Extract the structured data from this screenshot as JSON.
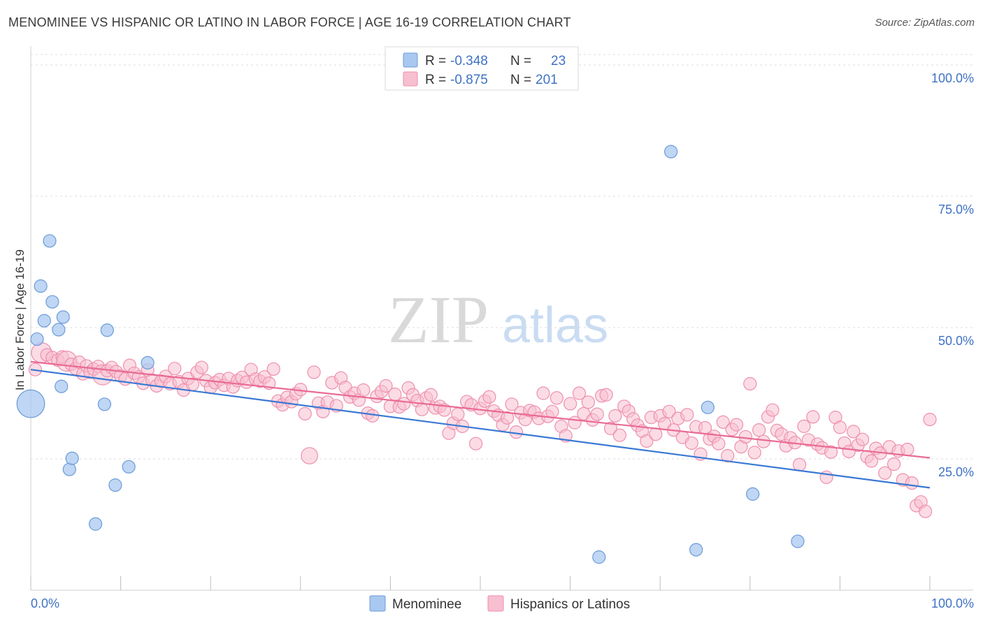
{
  "title": "MENOMINEE VS HISPANIC OR LATINO IN LABOR FORCE | AGE 16-19 CORRELATION CHART",
  "source": "Source: ZipAtlas.com",
  "watermark": {
    "zip": "ZIP",
    "atlas": "atlas"
  },
  "legend": {
    "rows": [
      {
        "r_label": "R = ",
        "r_value": "-0.348",
        "n_label": "N = ",
        "n_value": "23"
      },
      {
        "r_label": "R = ",
        "r_value": "-0.875",
        "n_label": "N = ",
        "n_value": "201"
      }
    ]
  },
  "colors": {
    "menominee_fill": "#a9c8f0",
    "menominee_stroke": "#6b9bd8",
    "menominee_line": "#3a78d4",
    "hispanic_fill": "#f7bfd0",
    "hispanic_stroke": "#ee8fae",
    "hispanic_line": "#e96a95"
  },
  "chart_data": {
    "type": "scatter",
    "title": "MENOMINEE VS HISPANIC OR LATINO IN LABOR FORCE | AGE 16-19 CORRELATION CHART",
    "xlabel": "",
    "ylabel": "In Labor Force | Age 16-19",
    "xlim": [
      0,
      100
    ],
    "ylim": [
      0,
      102
    ],
    "x_tick_labels": [
      "0.0%",
      "100.0%"
    ],
    "y_ticks": [
      25,
      50,
      75,
      100
    ],
    "y_tick_labels": [
      "25.0%",
      "50.0%",
      "75.0%",
      "100.0%"
    ],
    "grid": true,
    "legend_position": "top-center",
    "series": [
      {
        "name": "Menominee",
        "trend": [
          [
            0,
            42.0
          ],
          [
            100,
            19.5
          ]
        ],
        "points": [
          [
            0.0,
            35.5,
            2.2
          ],
          [
            0.7,
            47.8,
            1
          ],
          [
            1.1,
            57.9,
            1
          ],
          [
            1.5,
            51.3,
            1
          ],
          [
            2.1,
            66.5,
            1
          ],
          [
            2.4,
            54.9,
            1
          ],
          [
            3.1,
            49.6,
            1
          ],
          [
            3.4,
            38.8,
            1
          ],
          [
            3.6,
            52.0,
            1
          ],
          [
            4.3,
            23.0,
            1
          ],
          [
            4.6,
            25.1,
            1
          ],
          [
            7.2,
            12.6,
            1
          ],
          [
            8.2,
            35.4,
            1
          ],
          [
            8.5,
            49.5,
            1
          ],
          [
            9.4,
            20.0,
            1
          ],
          [
            10.9,
            23.5,
            1
          ],
          [
            13.0,
            43.3,
            1
          ],
          [
            63.2,
            6.3,
            1
          ],
          [
            71.2,
            83.5,
            1
          ],
          [
            74.0,
            7.7,
            1
          ],
          [
            75.3,
            34.8,
            1
          ],
          [
            80.3,
            18.3,
            1
          ],
          [
            76.9,
            18.1,
            0
          ],
          [
            85.3,
            9.3,
            1
          ]
        ]
      },
      {
        "name": "Hispanics or Latinos",
        "trend": [
          [
            0,
            43.5
          ],
          [
            100,
            25.2
          ]
        ],
        "points": [
          [
            0.5,
            42.0,
            1
          ],
          [
            1.2,
            45.2,
            1.6
          ],
          [
            1.8,
            44.8,
            1
          ],
          [
            2.4,
            44.3,
            1
          ],
          [
            3.0,
            43.8,
            1
          ],
          [
            3.5,
            44.4,
            1
          ],
          [
            4.0,
            43.6,
            1.6
          ],
          [
            4.5,
            43.0,
            1
          ],
          [
            5.0,
            42.2,
            1
          ],
          [
            5.4,
            43.4,
            1
          ],
          [
            5.8,
            41.2,
            1
          ],
          [
            6.2,
            42.7,
            1
          ],
          [
            6.6,
            41.5,
            1
          ],
          [
            7.0,
            42.1,
            1
          ],
          [
            7.5,
            42.6,
            1
          ],
          [
            8.0,
            41.0,
            1.6
          ],
          [
            8.5,
            41.8,
            1
          ],
          [
            9.0,
            42.4,
            1
          ],
          [
            9.5,
            41.6,
            1
          ],
          [
            10.0,
            40.8,
            1
          ],
          [
            10.5,
            40.2,
            1
          ],
          [
            11.0,
            42.8,
            1
          ],
          [
            11.5,
            41.3,
            1
          ],
          [
            12.0,
            40.6,
            1
          ],
          [
            12.5,
            39.4,
            1
          ],
          [
            13.0,
            41.9,
            1
          ],
          [
            13.5,
            40.0,
            1
          ],
          [
            14.0,
            38.9,
            1
          ],
          [
            14.5,
            39.8,
            1
          ],
          [
            15.0,
            40.7,
            1
          ],
          [
            15.5,
            39.3,
            1
          ],
          [
            16.0,
            42.2,
            1
          ],
          [
            16.5,
            39.7,
            1
          ],
          [
            17.0,
            38.1,
            1
          ],
          [
            17.5,
            40.3,
            1
          ],
          [
            18.0,
            39.2,
            1
          ],
          [
            18.5,
            41.5,
            1
          ],
          [
            19.0,
            42.4,
            1
          ],
          [
            19.5,
            39.9,
            1
          ],
          [
            20.0,
            38.6,
            1
          ],
          [
            20.5,
            39.5,
            1
          ],
          [
            21.0,
            40.1,
            1
          ],
          [
            21.5,
            39.0,
            1
          ],
          [
            22.0,
            40.3,
            1
          ],
          [
            22.5,
            38.7,
            1
          ],
          [
            23.0,
            39.9,
            1
          ],
          [
            23.5,
            40.5,
            1
          ],
          [
            24.0,
            39.6,
            1
          ],
          [
            24.5,
            42.0,
            1
          ],
          [
            25.0,
            40.2,
            1
          ],
          [
            25.5,
            39.8,
            1
          ],
          [
            26.0,
            40.6,
            1
          ],
          [
            26.5,
            39.4,
            1
          ],
          [
            27.0,
            42.1,
            1
          ],
          [
            27.5,
            36.0,
            1
          ],
          [
            28.0,
            35.3,
            1
          ],
          [
            28.5,
            36.7,
            1
          ],
          [
            29.0,
            35.9,
            1
          ],
          [
            29.5,
            37.4,
            1
          ],
          [
            30.0,
            38.2,
            1
          ],
          [
            30.5,
            33.6,
            1
          ],
          [
            31.0,
            25.6,
            1.3
          ],
          [
            31.5,
            41.5,
            1
          ],
          [
            32.0,
            35.6,
            1
          ],
          [
            32.5,
            34.0,
            1
          ],
          [
            33.0,
            35.8,
            1
          ],
          [
            33.5,
            39.5,
            1
          ],
          [
            34.0,
            35.1,
            1
          ],
          [
            34.5,
            40.4,
            1
          ],
          [
            35.0,
            38.6,
            1
          ],
          [
            35.5,
            36.8,
            1
          ],
          [
            36.0,
            37.5,
            1
          ],
          [
            36.5,
            36.2,
            1
          ],
          [
            37.0,
            38.1,
            1
          ],
          [
            37.5,
            33.7,
            1
          ],
          [
            38.0,
            33.2,
            1
          ],
          [
            38.5,
            36.9,
            1
          ],
          [
            39.0,
            37.8,
            1
          ],
          [
            39.5,
            38.9,
            1
          ],
          [
            40.0,
            35.0,
            1
          ],
          [
            40.5,
            37.3,
            1
          ],
          [
            41.0,
            34.9,
            1
          ],
          [
            41.5,
            35.5,
            1
          ],
          [
            42.0,
            38.5,
            1
          ],
          [
            42.5,
            37.2,
            1
          ],
          [
            43.0,
            36.1,
            1
          ],
          [
            43.5,
            34.4,
            1
          ],
          [
            44.0,
            36.6,
            1
          ],
          [
            44.5,
            37.2,
            1
          ],
          [
            45.0,
            34.7,
            1
          ],
          [
            45.5,
            35.0,
            1
          ],
          [
            46.0,
            34.3,
            1
          ],
          [
            46.5,
            29.9,
            1
          ],
          [
            47.0,
            31.8,
            1
          ],
          [
            47.5,
            33.5,
            1
          ],
          [
            48.0,
            31.2,
            1
          ],
          [
            48.5,
            35.9,
            1
          ],
          [
            49.0,
            35.3,
            1
          ],
          [
            49.5,
            27.9,
            1
          ],
          [
            50.0,
            34.6,
            1
          ],
          [
            50.5,
            36.0,
            1
          ],
          [
            51.0,
            36.8,
            1
          ],
          [
            51.5,
            34.1,
            1
          ],
          [
            52.0,
            33.3,
            1
          ],
          [
            52.5,
            31.5,
            1
          ],
          [
            53.0,
            32.8,
            1
          ],
          [
            53.5,
            35.4,
            1
          ],
          [
            54.0,
            30.1,
            1
          ],
          [
            54.5,
            33.8,
            1
          ],
          [
            55.0,
            32.5,
            1
          ],
          [
            55.5,
            34.2,
            1
          ],
          [
            56.0,
            33.9,
            1
          ],
          [
            56.5,
            32.7,
            1
          ],
          [
            57.0,
            37.5,
            1
          ],
          [
            57.5,
            33.1,
            1
          ],
          [
            58.0,
            34.0,
            1
          ],
          [
            58.5,
            36.6,
            1
          ],
          [
            59.0,
            31.2,
            1
          ],
          [
            59.5,
            29.4,
            1
          ],
          [
            60.0,
            35.5,
            1
          ],
          [
            60.5,
            31.9,
            1
          ],
          [
            61.0,
            37.5,
            1
          ],
          [
            61.5,
            33.6,
            1
          ],
          [
            62.0,
            35.8,
            1
          ],
          [
            62.5,
            32.4,
            1
          ],
          [
            63.0,
            33.5,
            1
          ],
          [
            63.5,
            37.0,
            1
          ],
          [
            64.0,
            37.2,
            1
          ],
          [
            64.5,
            30.8,
            1
          ],
          [
            65.0,
            33.2,
            1
          ],
          [
            65.5,
            29.5,
            1
          ],
          [
            66.0,
            35.0,
            1
          ],
          [
            66.5,
            34.1,
            1
          ],
          [
            67.0,
            32.6,
            1
          ],
          [
            67.5,
            31.4,
            1
          ],
          [
            68.0,
            30.3,
            1
          ],
          [
            68.5,
            28.4,
            1
          ],
          [
            69.0,
            32.9,
            1
          ],
          [
            69.5,
            29.7,
            1
          ],
          [
            70.0,
            33.2,
            1
          ],
          [
            70.5,
            31.7,
            1
          ],
          [
            71.0,
            34.0,
            1
          ],
          [
            71.5,
            30.5,
            1
          ],
          [
            72.0,
            32.7,
            1
          ],
          [
            72.5,
            29.1,
            1
          ],
          [
            73.0,
            33.4,
            1
          ],
          [
            73.5,
            28.0,
            1
          ],
          [
            74.0,
            31.1,
            1
          ],
          [
            74.5,
            25.9,
            1
          ],
          [
            75.0,
            30.9,
            1
          ],
          [
            75.5,
            28.8,
            1
          ],
          [
            76.0,
            29.3,
            1
          ],
          [
            76.5,
            27.9,
            1
          ],
          [
            77.0,
            32.0,
            1
          ],
          [
            77.5,
            25.6,
            1
          ],
          [
            78.0,
            30.6,
            1
          ],
          [
            78.5,
            31.5,
            1
          ],
          [
            79.0,
            27.3,
            1
          ],
          [
            79.5,
            29.2,
            1
          ],
          [
            80.0,
            39.3,
            1
          ],
          [
            80.5,
            26.2,
            1
          ],
          [
            81.0,
            30.5,
            1
          ],
          [
            81.5,
            28.3,
            1
          ],
          [
            82.0,
            33.0,
            1
          ],
          [
            82.5,
            34.3,
            1
          ],
          [
            83.0,
            30.4,
            1
          ],
          [
            83.5,
            29.7,
            1
          ],
          [
            84.0,
            27.5,
            1
          ],
          [
            84.5,
            29.0,
            1
          ],
          [
            85.0,
            28.1,
            1
          ],
          [
            85.5,
            23.9,
            1
          ],
          [
            86.0,
            31.2,
            1
          ],
          [
            86.5,
            28.6,
            1
          ],
          [
            87.0,
            33.0,
            1
          ],
          [
            87.5,
            27.8,
            1
          ],
          [
            88.0,
            27.1,
            1
          ],
          [
            88.5,
            21.5,
            1
          ],
          [
            89.0,
            26.3,
            1
          ],
          [
            89.5,
            32.9,
            1
          ],
          [
            90.0,
            31.0,
            1
          ],
          [
            90.5,
            28.0,
            1
          ],
          [
            91.0,
            26.4,
            1
          ],
          [
            91.5,
            30.2,
            1
          ],
          [
            92.0,
            27.6,
            1
          ],
          [
            92.5,
            28.7,
            1
          ],
          [
            93.0,
            25.4,
            1
          ],
          [
            93.5,
            24.6,
            1
          ],
          [
            94.0,
            27.0,
            1
          ],
          [
            94.5,
            26.1,
            1
          ],
          [
            95.0,
            22.3,
            1
          ],
          [
            95.5,
            27.3,
            1
          ],
          [
            96.0,
            24.0,
            1
          ],
          [
            96.5,
            26.5,
            1
          ],
          [
            97.0,
            21.0,
            1
          ],
          [
            97.5,
            26.8,
            1
          ],
          [
            98.0,
            20.4,
            1
          ],
          [
            98.5,
            16.1,
            1
          ],
          [
            99.0,
            16.8,
            1
          ],
          [
            99.5,
            15.0,
            1
          ],
          [
            100.0,
            32.5,
            1
          ]
        ]
      }
    ]
  },
  "bottom_legend": [
    "Menominee",
    "Hispanics or Latinos"
  ]
}
